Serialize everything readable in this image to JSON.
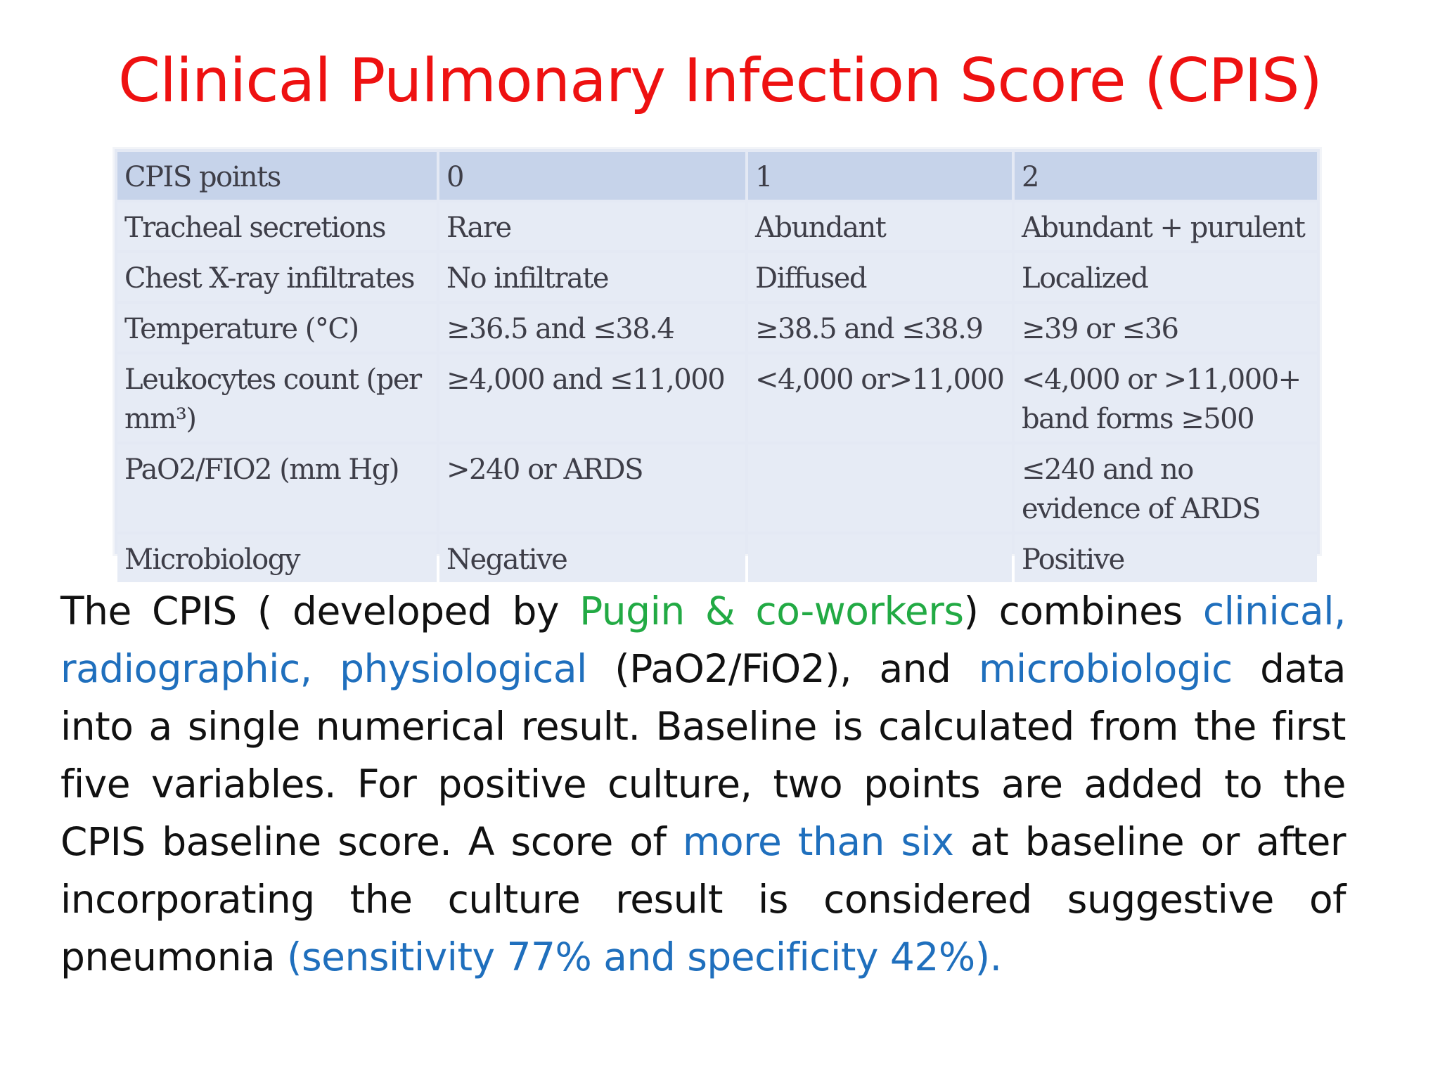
{
  "title": "Clinical Pulmonary Infection Score (CPIS)",
  "table": {
    "header": [
      "CPIS points",
      "0",
      "1",
      "2"
    ],
    "rows": [
      [
        "Tracheal secretions",
        "Rare",
        "Abundant",
        "Abundant + purulent"
      ],
      [
        "Chest X-ray infiltrates",
        "No infiltrate",
        "Diffused",
        "Localized"
      ],
      [
        "Temperature (°C)",
        "≥36.5 and ≤38.4",
        "≥38.5 and ≤38.9",
        "≥39 or ≤36"
      ],
      [
        "Leukocytes count (per mm³)",
        "≥4,000 and ≤11,000",
        "<4,000 or>11,000",
        "<4,000 or >11,000+ band forms ≥500"
      ],
      [
        "PaO2/FIO2 (mm Hg)",
        ">240 or ARDS",
        "",
        "≤240 and no evidence of ARDS"
      ],
      [
        "Microbiology",
        "Negative",
        "",
        "Positive"
      ]
    ]
  },
  "paragraph": {
    "s1": "The CPIS ( developed by ",
    "s2": "Pugin & co-workers",
    "s3": ") combines ",
    "s4": "clinical, radiographic, physiological",
    "s5": " (PaO2/FiO2), and ",
    "s6": "microbiologic",
    "s7": " data into a single numerical result. Baseline is calculated from the  first five variables. For positive culture, two points are added to the CPIS baseline score. A  score of ",
    "s8": "more than six",
    "s9": " at baseline or after incorporating the culture result is considered suggestive of pneumonia ",
    "s10": "(sensitivity 77% and  specificity  42%)."
  },
  "colors": {
    "title": "#ee1111",
    "highlight_green": "#22aa44",
    "highlight_blue": "#1f6fbd",
    "table_header_bg": "#c6d3ea",
    "table_cell_bg": "#e6ebf5"
  }
}
